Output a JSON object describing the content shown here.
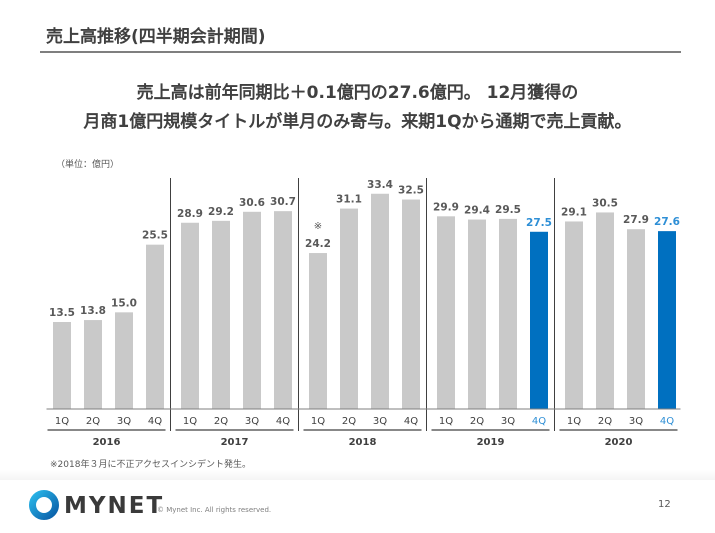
{
  "slide": {
    "title": "売上高推移(四半期会計期間)",
    "headline_line1": "売上高は前年同期比＋0.1億円の27.6億円。 12月獲得の",
    "headline_line2": "月商1億円規模タイトルが単月のみ寄与。来期1Qから通期で売上貢献。",
    "footnote": "※2018年３月に不正アクセスインシデント発生。",
    "page_number": "12"
  },
  "footer": {
    "logo_text": "MYNET",
    "copyright": "© Mynet Inc. All rights reserved.",
    "logo_colors": [
      "#29b6e8",
      "#0a5ea8"
    ]
  },
  "colors": {
    "bar_default": "#c9c9c9",
    "bar_highlight": "#0070c0",
    "label_default": "#595959",
    "label_highlight": "#2e8fd6"
  },
  "chart_data": {
    "type": "bar",
    "unit_label": "（単位：億円）",
    "ylim": [
      0,
      36
    ],
    "grid": false,
    "groups": [
      {
        "year": "2016",
        "quarters": [
          "1Q",
          "2Q",
          "3Q",
          "4Q"
        ],
        "values": [
          13.5,
          13.8,
          15.0,
          25.5
        ],
        "labels": [
          "13.5",
          "13.8",
          "15.0",
          "25.5"
        ]
      },
      {
        "year": "2017",
        "quarters": [
          "1Q",
          "2Q",
          "3Q",
          "4Q"
        ],
        "values": [
          28.9,
          29.2,
          30.6,
          30.7
        ],
        "labels": [
          "28.9",
          "29.2",
          "30.6",
          "30.7"
        ]
      },
      {
        "year": "2018",
        "quarters": [
          "1Q",
          "2Q",
          "3Q",
          "4Q"
        ],
        "values": [
          24.2,
          31.1,
          33.4,
          32.5
        ],
        "labels": [
          "24.2",
          "31.1",
          "33.4",
          "32.5"
        ]
      },
      {
        "year": "2019",
        "quarters": [
          "1Q",
          "2Q",
          "3Q",
          "4Q"
        ],
        "values": [
          29.9,
          29.4,
          29.5,
          27.5
        ],
        "labels": [
          "29.9",
          "29.4",
          "29.5",
          "27.5"
        ]
      },
      {
        "year": "2020",
        "quarters": [
          "1Q",
          "2Q",
          "3Q",
          "4Q"
        ],
        "values": [
          29.1,
          30.5,
          27.9,
          27.6
        ],
        "labels": [
          "29.1",
          "30.5",
          "27.9",
          "27.6"
        ]
      }
    ],
    "highlighted": [
      {
        "year": "2019",
        "quarter": "4Q"
      },
      {
        "year": "2020",
        "quarter": "4Q"
      }
    ],
    "annotations": [
      {
        "year": "2018",
        "quarter": "1Q",
        "text": "※"
      }
    ]
  }
}
